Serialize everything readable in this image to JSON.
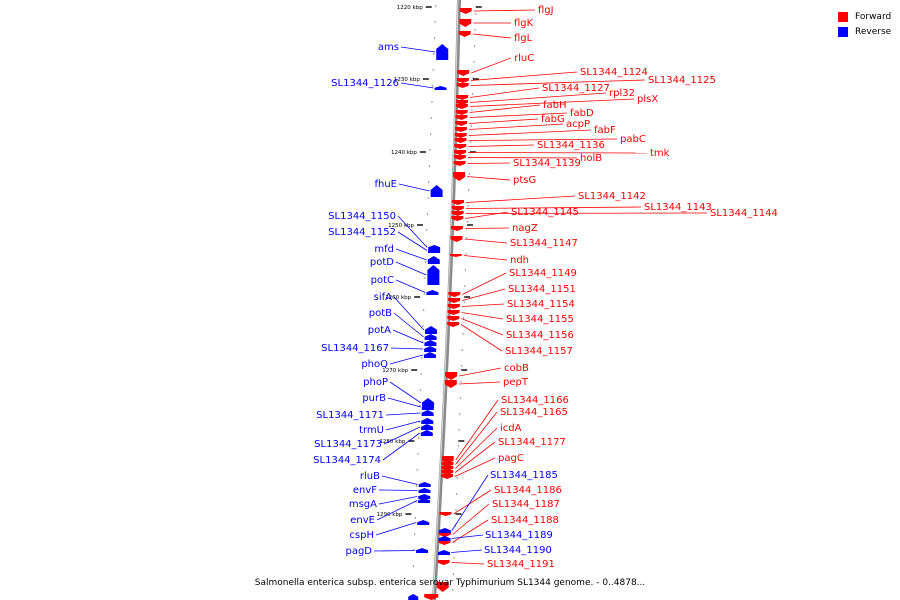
{
  "legend": {
    "forward_label": "Forward",
    "reverse_label": "Reverse",
    "forward_color": "#ff0000",
    "reverse_color": "#0000ff"
  },
  "caption": "Salmonella enterica subsp. enterica serovar Typhimurium SL1344 genome. - 0..4878...",
  "ticks": [
    "1220 kbp",
    "1230 kbp",
    "1240 kbp",
    "1250 kbp",
    "1260 kbp",
    "1270 kbp",
    "1280 kbp",
    "1290 kbp"
  ],
  "forward_genes": [
    "flgJ",
    "flgK",
    "flgL",
    "rluC",
    "SL1344_1124",
    "SL1344_1125",
    "SL1344_1127",
    "rpl32",
    "plsX",
    "fabH",
    "fabD",
    "fabG",
    "acpP",
    "fabF",
    "pabC",
    "SL1344_1136",
    "tmk",
    "holB",
    "SL1344_1139",
    "ptsG",
    "SL1344_1142",
    "SL1344_1143",
    "SL1344_1144",
    "SL1344_1145",
    "nagZ",
    "SL1344_1147",
    "ndh",
    "SL1344_1149",
    "SL1344_1151",
    "SL1344_1154",
    "SL1344_1155",
    "SL1344_1156",
    "SL1344_1157",
    "cobB",
    "pepT",
    "SL1344_1166",
    "SL1344_1165",
    "icdA",
    "SL1344_1177",
    "pagC",
    "SL1344_1186",
    "SL1344_1187",
    "SL1344_1188",
    "SL1344_1191"
  ],
  "reverse_genes": [
    "ams",
    "SL1344_1126",
    "fhuE",
    "SL1344_1150",
    "SL1344_1152",
    "mfd",
    "potD",
    "potC",
    "sifA",
    "potB",
    "potA",
    "SL1344_1167",
    "phoQ",
    "phoP",
    "purB",
    "SL1344_1171",
    "trmU",
    "SL1344_1173",
    "SL1344_1174",
    "rluB",
    "envF",
    "msgA",
    "envE",
    "cspH",
    "pagD",
    "SL1344_1185",
    "SL1344_1189",
    "SL1344_1190"
  ]
}
